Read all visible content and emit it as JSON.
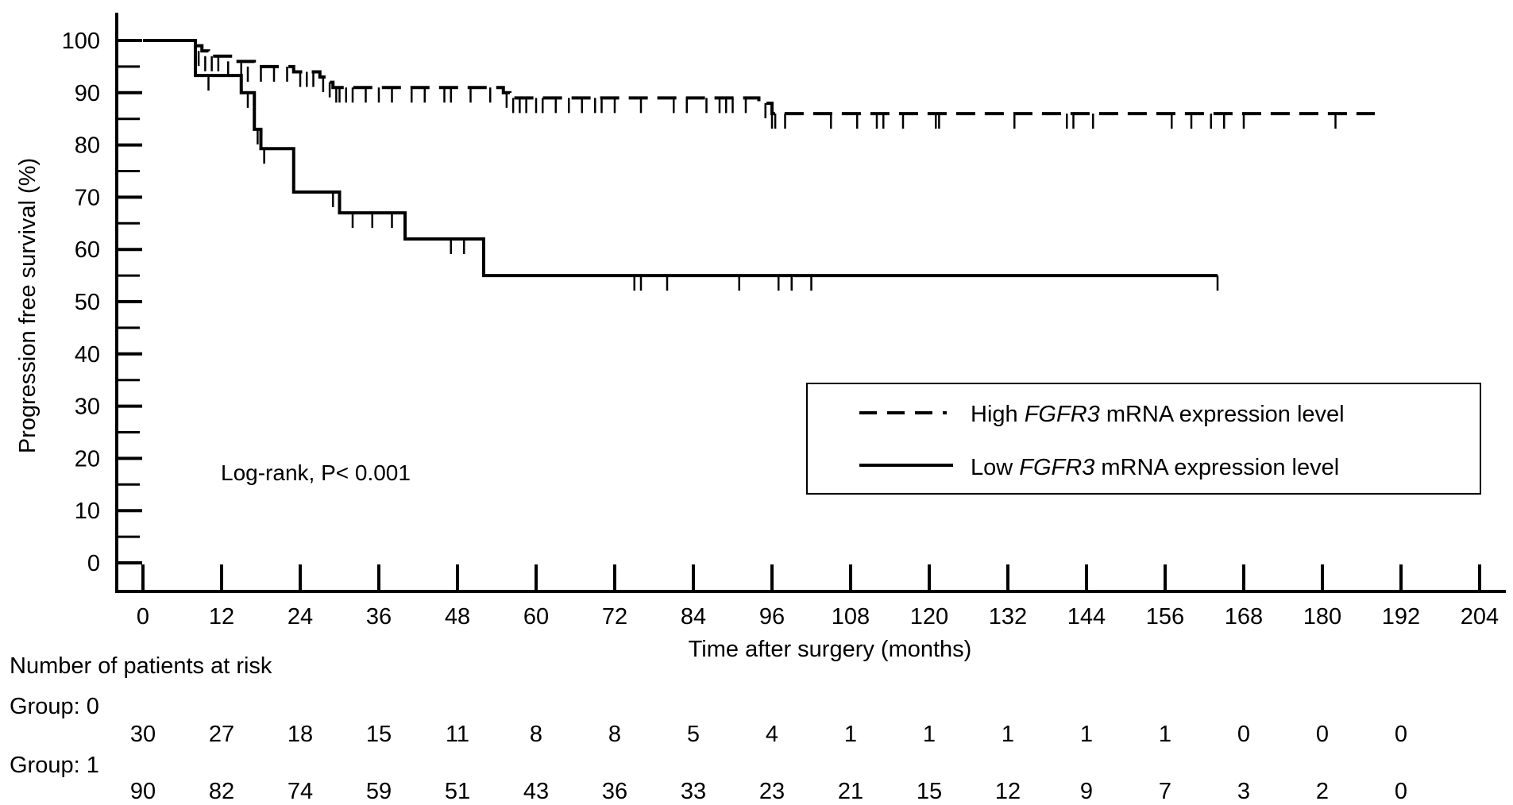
{
  "chart_data": {
    "type": "line",
    "subtype": "kaplan-meier",
    "title": "",
    "xlabel": "Time after surgery (months)",
    "ylabel": "Progression free survival (%)",
    "xlim": [
      0,
      204
    ],
    "ylim": [
      0,
      100
    ],
    "xticks": [
      0,
      12,
      24,
      36,
      48,
      60,
      72,
      84,
      96,
      108,
      120,
      132,
      144,
      156,
      168,
      180,
      192,
      204
    ],
    "yticks": [
      0,
      10,
      20,
      30,
      40,
      50,
      60,
      70,
      80,
      90,
      100
    ],
    "annotation": "Log-rank,  P< 0.001",
    "legend": {
      "placement": "lower-right",
      "entries": [
        {
          "prefix": "High ",
          "gene": "FGFR3",
          "suffix": " mRNA expression level",
          "style": "dashed"
        },
        {
          "prefix": "Low ",
          "gene": "FGFR3",
          "suffix": " mRNA expression level",
          "style": "solid"
        }
      ]
    },
    "series": [
      {
        "style": "dashed",
        "steps": [
          [
            0,
            100
          ],
          [
            8,
            100
          ],
          [
            8,
            99
          ],
          [
            9,
            98
          ],
          [
            10,
            97
          ],
          [
            14,
            96
          ],
          [
            17,
            95
          ],
          [
            23,
            94
          ],
          [
            27,
            93
          ],
          [
            28,
            92
          ],
          [
            29,
            91
          ],
          [
            55,
            90
          ],
          [
            56,
            89
          ],
          [
            94,
            88
          ],
          [
            96,
            86
          ],
          [
            188,
            86
          ]
        ],
        "censored": [
          [
            8.5,
            98
          ],
          [
            9.5,
            97
          ],
          [
            10.5,
            97
          ],
          [
            11.5,
            97
          ],
          [
            13,
            96
          ],
          [
            15,
            96
          ],
          [
            16,
            95
          ],
          [
            18,
            95
          ],
          [
            20,
            95
          ],
          [
            22,
            95
          ],
          [
            24,
            94
          ],
          [
            25,
            94
          ],
          [
            26,
            94
          ],
          [
            27.5,
            93
          ],
          [
            28.5,
            92
          ],
          [
            29.5,
            91
          ],
          [
            30,
            91
          ],
          [
            31,
            91
          ],
          [
            32,
            91
          ],
          [
            34,
            91
          ],
          [
            36,
            91
          ],
          [
            38,
            91
          ],
          [
            41,
            91
          ],
          [
            43,
            91
          ],
          [
            46,
            91
          ],
          [
            47,
            91
          ],
          [
            50,
            91
          ],
          [
            53,
            91
          ],
          [
            55.5,
            90
          ],
          [
            56.5,
            89
          ],
          [
            57.5,
            89
          ],
          [
            58.5,
            89
          ],
          [
            60,
            89
          ],
          [
            61,
            89
          ],
          [
            63,
            89
          ],
          [
            65,
            89
          ],
          [
            67,
            89
          ],
          [
            69,
            89
          ],
          [
            70,
            89
          ],
          [
            72,
            89
          ],
          [
            76,
            89
          ],
          [
            81,
            89
          ],
          [
            83,
            89
          ],
          [
            86,
            89
          ],
          [
            88,
            89
          ],
          [
            89,
            89
          ],
          [
            90,
            89
          ],
          [
            92,
            89
          ],
          [
            95,
            88
          ],
          [
            96,
            86
          ],
          [
            96.5,
            86
          ],
          [
            98,
            86
          ],
          [
            105,
            86
          ],
          [
            109,
            86
          ],
          [
            112,
            86
          ],
          [
            113,
            86
          ],
          [
            116,
            86
          ],
          [
            121,
            86
          ],
          [
            121.5,
            86
          ],
          [
            133,
            86
          ],
          [
            141,
            86
          ],
          [
            142,
            86
          ],
          [
            145,
            86
          ],
          [
            157,
            86
          ],
          [
            160,
            86
          ],
          [
            163,
            86
          ],
          [
            165,
            86
          ],
          [
            168,
            86
          ],
          [
            182,
            86
          ]
        ]
      },
      {
        "style": "solid",
        "steps": [
          [
            0,
            100
          ],
          [
            8,
            100
          ],
          [
            8,
            93.3
          ],
          [
            15,
            93.3
          ],
          [
            15,
            90
          ],
          [
            17,
            90
          ],
          [
            17,
            83
          ],
          [
            18,
            83
          ],
          [
            18,
            79.3
          ],
          [
            23,
            79.3
          ],
          [
            23,
            71
          ],
          [
            30,
            71
          ],
          [
            30,
            67
          ],
          [
            40,
            67
          ],
          [
            40,
            62
          ],
          [
            52,
            62
          ],
          [
            52,
            55
          ],
          [
            164,
            55
          ]
        ],
        "censored": [
          [
            10,
            93.3
          ],
          [
            16,
            90
          ],
          [
            17.5,
            83
          ],
          [
            18.5,
            79.3
          ],
          [
            29,
            71
          ],
          [
            32,
            67
          ],
          [
            35,
            67
          ],
          [
            38,
            67
          ],
          [
            47,
            62
          ],
          [
            49,
            62
          ],
          [
            75,
            55
          ],
          [
            76,
            55
          ],
          [
            80,
            55
          ],
          [
            91,
            55
          ],
          [
            97,
            55
          ],
          [
            99,
            55
          ],
          [
            102,
            55
          ],
          [
            164,
            55
          ]
        ]
      }
    ],
    "risk_table": {
      "title": "Number of patients at risk",
      "times": [
        0,
        12,
        24,
        36,
        48,
        60,
        72,
        84,
        96,
        108,
        120,
        132,
        144,
        156,
        168,
        180,
        192
      ],
      "groups": [
        {
          "label": "Group: 0",
          "counts": [
            "30",
            "27",
            "18",
            "15",
            "11",
            "8",
            "8",
            "5",
            "4",
            "1",
            "1",
            "1",
            "1",
            "1",
            "0",
            "0",
            "0"
          ]
        },
        {
          "label": "Group: 1",
          "counts": [
            "90",
            "82",
            "74",
            "59",
            "51",
            "43",
            "36",
            "33",
            "23",
            "21",
            "15",
            "12",
            "9",
            "7",
            "3",
            "2",
            "0"
          ]
        }
      ]
    }
  }
}
